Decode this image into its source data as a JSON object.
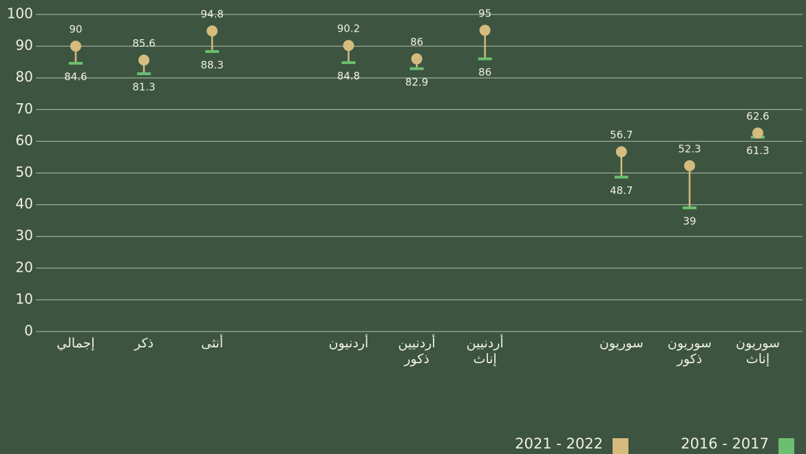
{
  "chart_data": {
    "type": "dumbbell",
    "categories": [
      "إجمالي",
      "ذكر",
      "أنثى",
      null,
      "أردنيون",
      "أردنيين ذكور",
      "أردنيين إناث",
      null,
      "سوريون",
      "سوريون ذكور",
      "سوريون إناث"
    ],
    "series": [
      {
        "name": "2021  - 2022",
        "color": "#d6bb7e",
        "values": [
          90,
          85.6,
          94.8,
          null,
          90.2,
          86,
          95,
          null,
          56.7,
          52.3,
          62.6
        ]
      },
      {
        "name": "2016 - 2017",
        "color": "#6cbf70",
        "values": [
          84.6,
          81.3,
          88.3,
          null,
          84.8,
          82.9,
          86,
          null,
          48.7,
          39,
          61.3
        ]
      }
    ],
    "ylim": [
      0,
      100
    ],
    "yticks": [
      0,
      10,
      20,
      30,
      40,
      50,
      60,
      70,
      80,
      90,
      100
    ],
    "grid": true
  }
}
